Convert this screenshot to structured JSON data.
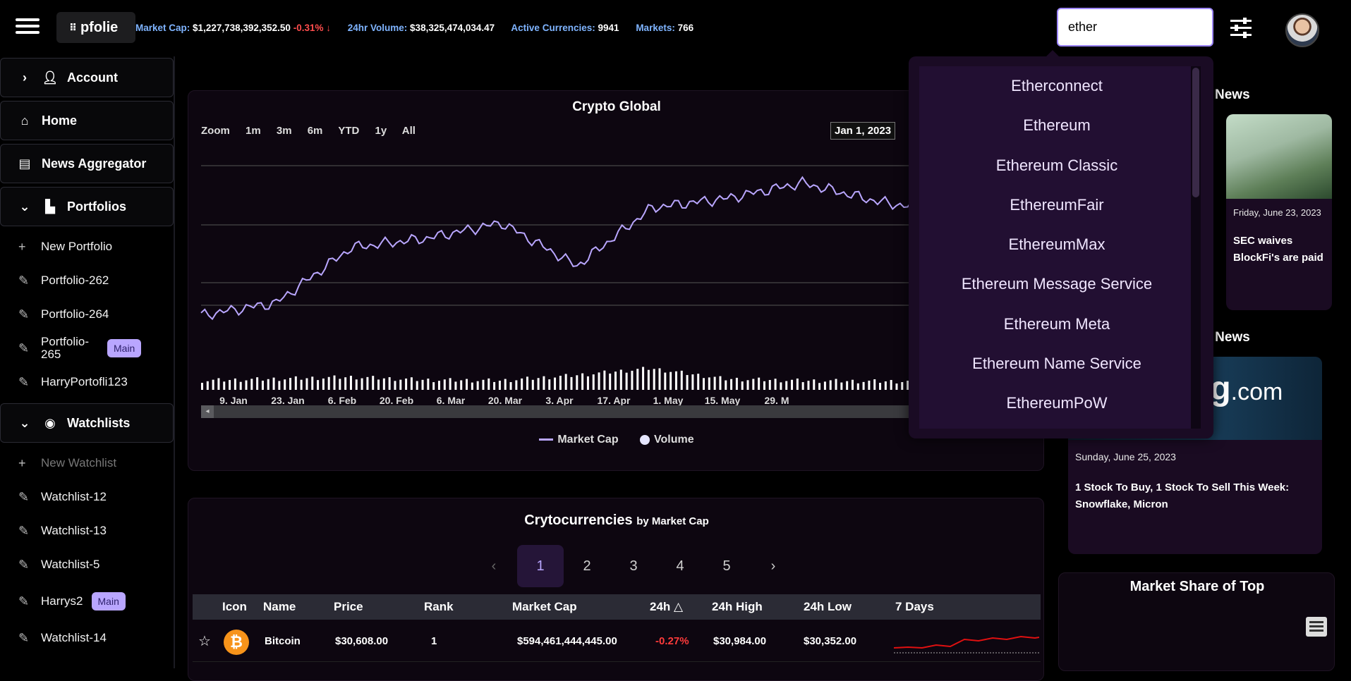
{
  "header": {
    "logo": "pfolie",
    "market_cap_label": "Market Cap:",
    "market_cap_value": "$1,227,738,392,352.50",
    "market_cap_change": "-0.31% ↓",
    "volume_label": "24hr Volume:",
    "volume_value": "$38,325,474,034.47",
    "active_label": "Active Currencies:",
    "active_value": "9941",
    "markets_label": "Markets:",
    "markets_value": "766",
    "search_value": "ether"
  },
  "sidebar": {
    "account": "Account",
    "home": "Home",
    "news": "News Aggregator",
    "portfolios": "Portfolios",
    "portfolio_items": [
      {
        "label": "New Portfolio"
      },
      {
        "label": "Portfolio-262"
      },
      {
        "label": "Portfolio-264"
      },
      {
        "label": "Portfolio-265",
        "badge": "Main"
      },
      {
        "label": "HarryPortofli123"
      }
    ],
    "watchlists": "Watchlists",
    "watchlist_items": [
      {
        "label": "New Watchlist"
      },
      {
        "label": "Watchlist-12"
      },
      {
        "label": "Watchlist-13"
      },
      {
        "label": "Watchlist-5"
      },
      {
        "label": "Harrys2",
        "badge": "Main"
      },
      {
        "label": "Watchlist-14"
      }
    ]
  },
  "chart": {
    "title": "Crypto Global",
    "zoom_label": "Zoom",
    "zoom_options": [
      "1m",
      "3m",
      "6m",
      "YTD",
      "1y",
      "All"
    ],
    "from_date": "Jan 1, 2023",
    "x_labels": [
      "9. Jan",
      "23. Jan",
      "6. Feb",
      "20. Feb",
      "6. Mar",
      "20. Mar",
      "3. Apr",
      "17. Apr",
      "1. May",
      "15. May",
      "29. M"
    ],
    "legend_marketcap": "Market Cap",
    "legend_volume": "Volume",
    "colors": {
      "line": "#b9a6ff",
      "volume": "#ffffff"
    }
  },
  "chart_data": {
    "type": "line",
    "title": "Crypto Global",
    "x": [
      "Jan 1",
      "Jan 9",
      "Jan 23",
      "Feb 6",
      "Feb 20",
      "Mar 6",
      "Mar 20",
      "Apr 3",
      "Apr 17",
      "May 1",
      "May 15",
      "May 29"
    ],
    "series": [
      {
        "name": "Market Cap",
        "values": [
          0.8,
          0.84,
          1.02,
          1.05,
          1.1,
          0.96,
          1.15,
          1.18,
          1.23,
          1.17,
          1.13,
          1.14
        ]
      },
      {
        "name": "Volume",
        "values": [
          0.2,
          0.25,
          0.3,
          0.22,
          0.2,
          0.35,
          0.55,
          0.25,
          0.2,
          0.18,
          0.18,
          0.18
        ]
      }
    ]
  },
  "search_results": [
    "Etherconnect",
    "Ethereum",
    "Ethereum Classic",
    "EthereumFair",
    "EthereumMax",
    "Ethereum Message Service",
    "Ethereum Meta",
    "Ethereum Name Service",
    "EthereumPoW"
  ],
  "news": {
    "heading1": "News",
    "card1_date": "Friday, June 23, 2023",
    "card1_text": "SEC waives BlockFi's are paid",
    "heading2": "et News",
    "card2_logo": "ng",
    "card2_logo_suffix": ".com",
    "card2_date": "Sunday, June 25, 2023",
    "card2_text": "1 Stock To Buy, 1 Stock To Sell This Week: Snowflake, Micron"
  },
  "crypto_table": {
    "title": "Crytocurrencies",
    "subtitle": "by Market Cap",
    "pages": [
      "1",
      "2",
      "3",
      "4",
      "5"
    ],
    "headers": [
      "Icon",
      "Name",
      "Price",
      "Rank",
      "Market Cap",
      "24h",
      "24h High",
      "24h Low",
      "7 Days"
    ],
    "rows": [
      {
        "name": "Bitcoin",
        "price": "$30,608.00",
        "rank": "1",
        "market_cap": "$594,461,444,445.00",
        "change": "-0.27%",
        "high": "$30,984.00",
        "low": "$30,352.00"
      }
    ]
  },
  "market_share": {
    "title": "Market Share of Top"
  }
}
